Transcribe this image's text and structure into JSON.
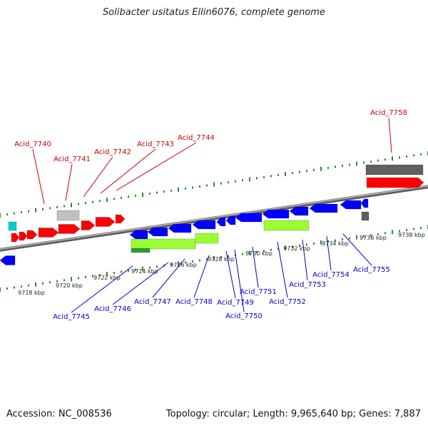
{
  "title": "Solibacter usitatus Ellin6076, complete genome",
  "footer": {
    "accession": "Accession: NC_008536",
    "summary": "Topology: circular; Length: 9,965,640 bp; Genes: 7,887"
  },
  "colors": {
    "plus_gene": "#ff0000",
    "minus_gene": "#0000ff",
    "plus_label": "#cc0000",
    "minus_label": "#0000cc",
    "rna_gene": "#00cccc",
    "pseudo_gene": "#c0c0c0",
    "dark_gene": "#606060",
    "lime_gene": "#99ff33",
    "green_gene": "#339933",
    "backbone": "#888888",
    "tick": "#2e8b2e"
  },
  "kbp_ticks": [
    "9718 kbp",
    "9720 kbp",
    "9722 kbp",
    "9724 kbp",
    "9726 kbp",
    "9728 kbp",
    "9730 kbp",
    "9732 kbp",
    "9734 kbp",
    "9736 kbp",
    "9738 kbp"
  ],
  "plus_labels": [
    "Acid_7740",
    "Acid_7741",
    "Acid_7742",
    "Acid_7743",
    "Acid_7744",
    "Acid_7758"
  ],
  "minus_labels": [
    "Acid_7745",
    "Acid_7746",
    "Acid_7747",
    "Acid_7748",
    "Acid_7749",
    "Acid_7750",
    "Acid_7751",
    "Acid_7752",
    "Acid_7753",
    "Acid_7754",
    "Acid_7755"
  ]
}
